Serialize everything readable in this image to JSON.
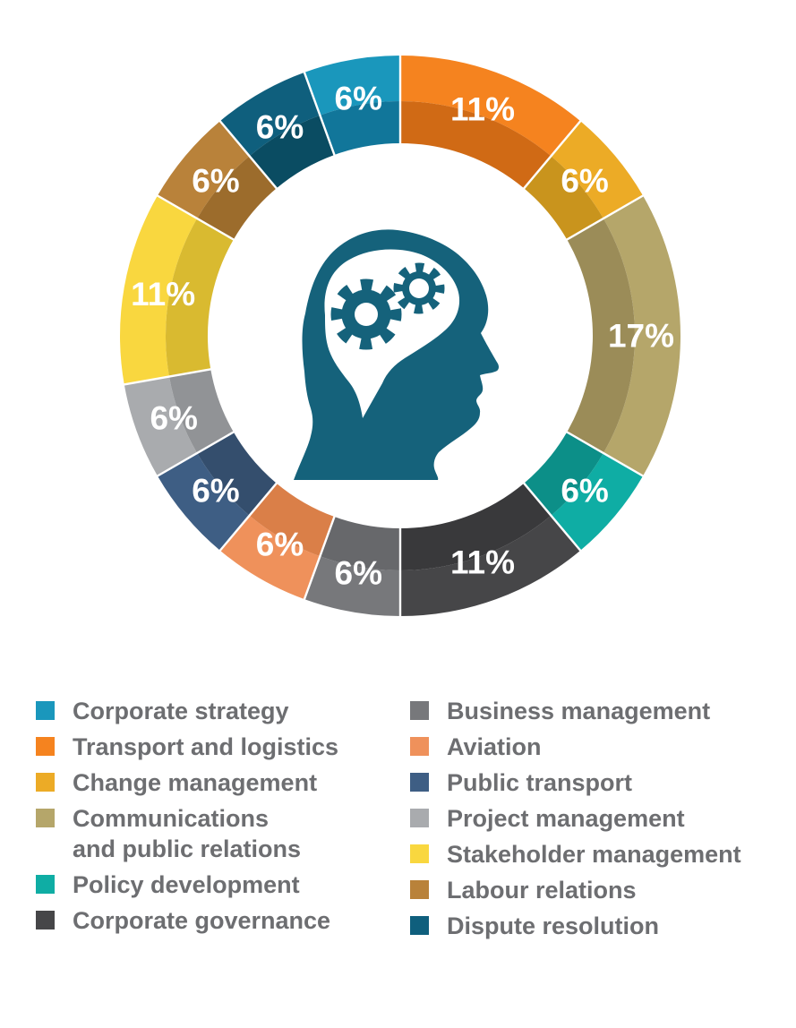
{
  "chart_data": {
    "type": "donut",
    "title": "",
    "unit": "%",
    "start_angle_deg": -20,
    "angle_per_unit_deg": 20,
    "segments": [
      {
        "label": "Corporate strategy",
        "display": "6%",
        "value": 6,
        "units": 1,
        "color": "#1a97bc",
        "shade": "#11769a",
        "legend_column": "left"
      },
      {
        "label": "Transport and logistics",
        "display": "11%",
        "value": 11,
        "units": 2,
        "color": "#f5831f",
        "shade": "#d06a15",
        "legend_column": "left"
      },
      {
        "label": "Change management",
        "display": "6%",
        "value": 6,
        "units": 1,
        "color": "#ecab26",
        "shade": "#c9941d",
        "legend_column": "left"
      },
      {
        "label": "Communications and public relations",
        "legend_text": "Communications\nand public relations",
        "display": "17%",
        "value": 17,
        "units": 3,
        "color": "#b5a66a",
        "shade": "#9b8c58",
        "legend_column": "left"
      },
      {
        "label": "Policy development",
        "display": "6%",
        "value": 6,
        "units": 1,
        "color": "#0fada4",
        "shade": "#0c8f88",
        "legend_column": "left"
      },
      {
        "label": "Corporate governance",
        "display": "11%",
        "value": 11,
        "units": 2,
        "color": "#464648",
        "shade": "#39393b",
        "legend_column": "left"
      },
      {
        "label": "Business management",
        "display": "6%",
        "value": 6,
        "units": 1,
        "color": "#77787b",
        "shade": "#67686b",
        "legend_column": "right"
      },
      {
        "label": "Aviation",
        "display": "6%",
        "value": 6,
        "units": 1,
        "color": "#ef915b",
        "shade": "#da7f48",
        "legend_column": "right"
      },
      {
        "label": "Public transport",
        "display": "6%",
        "value": 6,
        "units": 1,
        "color": "#3e5e84",
        "shade": "#344e6d",
        "legend_column": "right"
      },
      {
        "label": "Project management",
        "display": "6%",
        "value": 6,
        "units": 1,
        "color": "#a9abae",
        "shade": "#919396",
        "legend_column": "right"
      },
      {
        "label": "Stakeholder management",
        "display": "11%",
        "value": 11,
        "units": 2,
        "color": "#f9d73f",
        "shade": "#d9ba30",
        "legend_column": "right"
      },
      {
        "label": "Labour relations",
        "display": "6%",
        "value": 6,
        "units": 1,
        "color": "#b9823a",
        "shade": "#9c6c2c",
        "legend_column": "right"
      },
      {
        "label": "Dispute resolution",
        "display": "6%",
        "value": 6,
        "units": 1,
        "color": "#0f5f7d",
        "shade": "#0a4c62",
        "legend_column": "right"
      }
    ],
    "center_icon": "thinking-head-with-gears-icon",
    "icon_color": "#15627b",
    "value_label_color": "#ffffff",
    "legend_text_color": "#6d6e71",
    "legend_position": "bottom-two-columns",
    "grid": false
  }
}
